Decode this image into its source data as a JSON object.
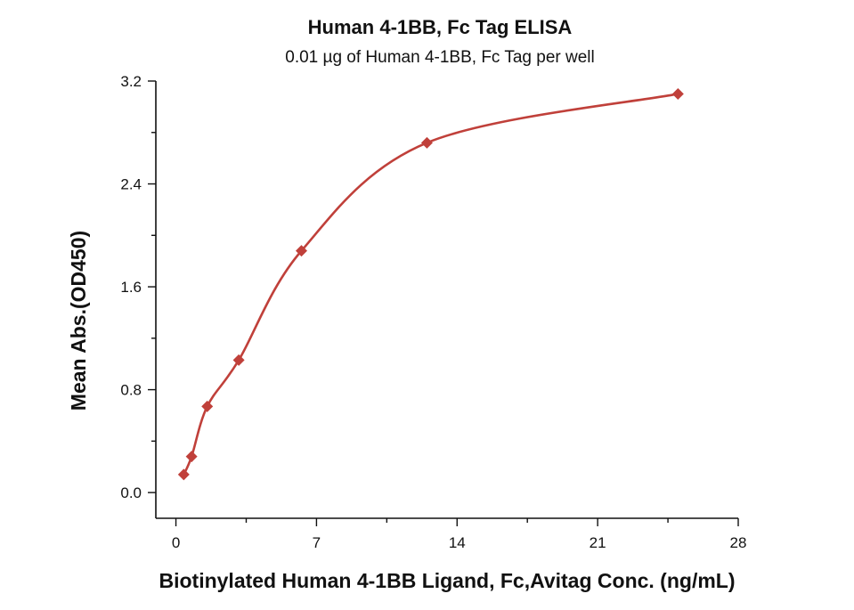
{
  "chart_data": {
    "type": "scatter",
    "title": "Human 4-1BB, Fc Tag ELISA",
    "subtitle": "0.01 µg of Human 4-1BB, Fc Tag per well",
    "xlabel": "Biotinylated Human 4-1BB Ligand, Fc,Avitag Conc. (ng/mL)",
    "ylabel": "Mean Abs.(OD450)",
    "xlim": [
      -1,
      28
    ],
    "ylim": [
      -0.2,
      3.2
    ],
    "x_ticks": [
      0,
      7,
      14,
      21,
      28
    ],
    "x_tick_labels": [
      "0",
      "7",
      "14",
      "21",
      "28"
    ],
    "y_ticks": [
      0.0,
      0.8,
      1.6,
      2.4,
      3.2
    ],
    "y_tick_labels": [
      "0.0",
      "0.8",
      "1.6",
      "2.4",
      "3.2"
    ],
    "grid": false,
    "series": [
      {
        "x": [
          0.39,
          0.78,
          1.56,
          3.13,
          6.25,
          12.5,
          25
        ],
        "y": [
          0.14,
          0.28,
          0.67,
          1.03,
          1.88,
          2.72,
          3.1
        ],
        "color": "#c0403a",
        "marker": "diamond",
        "fit_curve": true
      }
    ]
  }
}
